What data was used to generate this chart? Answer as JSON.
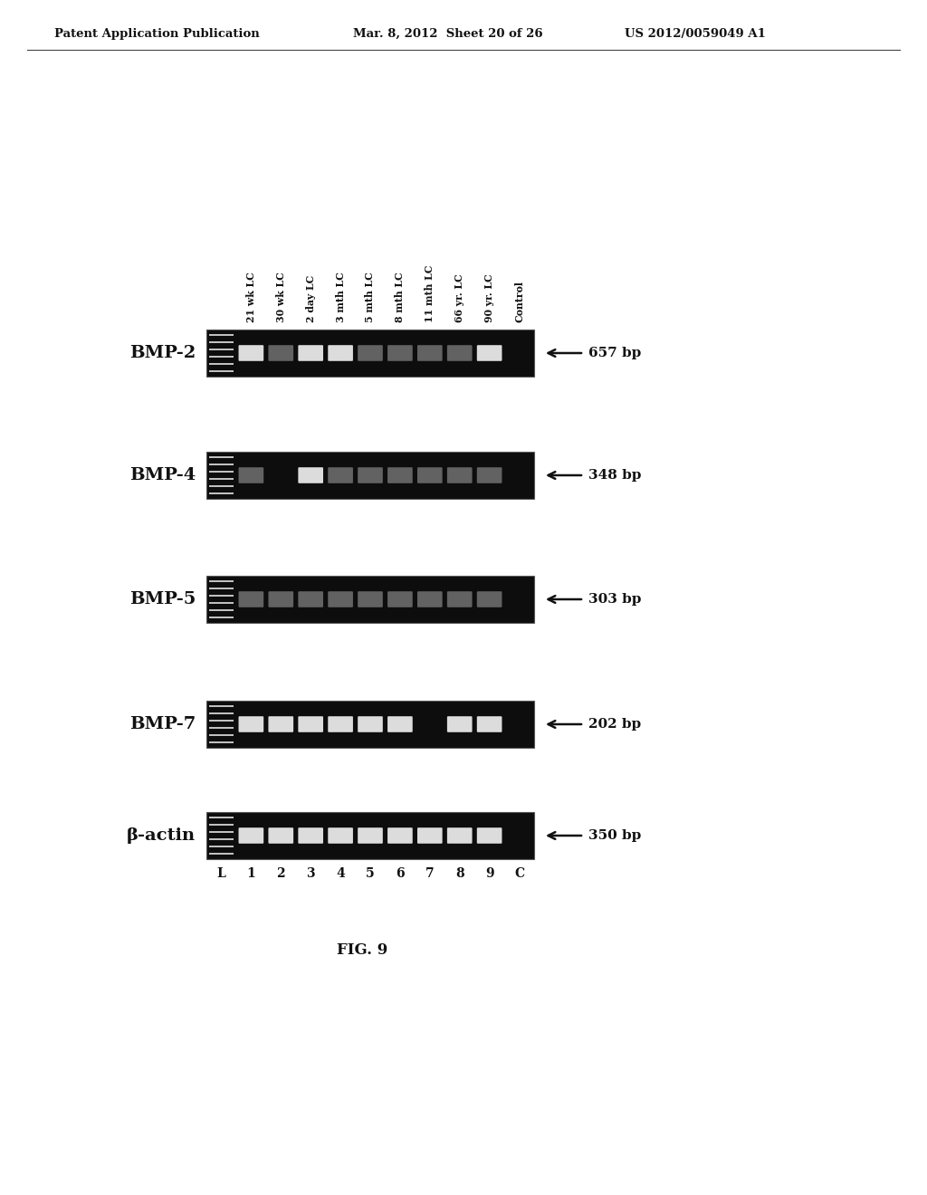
{
  "header_left": "Patent Application Publication",
  "header_mid": "Mar. 8, 2012  Sheet 20 of 26",
  "header_right": "US 2012/0059049 A1",
  "figure_label": "FIG. 9",
  "column_labels_rotated": [
    "21 wk LC",
    "30 wk LC",
    "2 day LC",
    "3 mth LC",
    "5 mth LC",
    "8 mth LC",
    "11 mth LC",
    "66 yr. LC",
    "90 yr. LC",
    "Control"
  ],
  "lane_labels": [
    "L",
    "1",
    "2",
    "3",
    "4",
    "5",
    "6",
    "7",
    "8",
    "9",
    "C"
  ],
  "gel_rows": [
    {
      "label": "BMP-2",
      "bp_label": "657 bp",
      "band_brightness": [
        0,
        2,
        1,
        2,
        2,
        1,
        1,
        1,
        1,
        2,
        0
      ]
    },
    {
      "label": "BMP-4",
      "bp_label": "348 bp",
      "band_brightness": [
        0,
        1,
        0,
        2,
        1,
        1,
        1,
        1,
        1,
        1,
        0
      ]
    },
    {
      "label": "BMP-5",
      "bp_label": "303 bp",
      "band_brightness": [
        0,
        1,
        1,
        1,
        1,
        1,
        1,
        1,
        1,
        1,
        0
      ]
    },
    {
      "label": "BMP-7",
      "bp_label": "202 bp",
      "band_brightness": [
        0,
        2,
        2,
        2,
        2,
        2,
        2,
        0,
        2,
        2,
        0
      ]
    },
    {
      "label": "β-actin",
      "bp_label": "350 bp",
      "band_brightness": [
        0,
        2,
        2,
        2,
        2,
        2,
        2,
        2,
        2,
        2,
        0
      ]
    }
  ]
}
